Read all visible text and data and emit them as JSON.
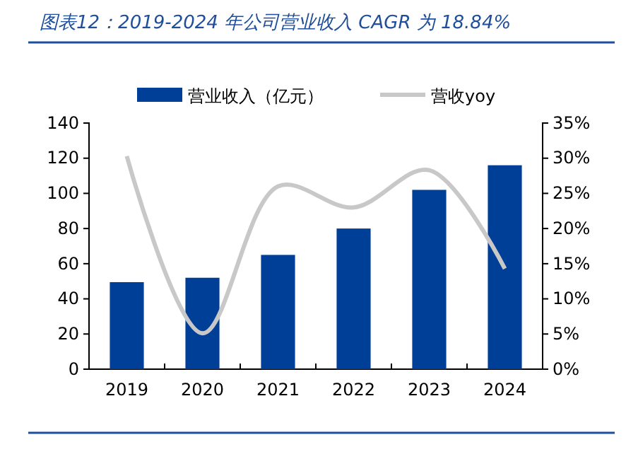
{
  "chart_data": {
    "type": "bar",
    "title": "图表12：2019-2024 年公司营业收入 CAGR 为 18.84%",
    "categories": [
      "2019",
      "2020",
      "2021",
      "2022",
      "2023",
      "2024"
    ],
    "series": [
      {
        "name": "营业收入（亿元）",
        "color": "#003f98",
        "values": [
          49.5,
          52,
          65,
          80,
          102,
          116
        ]
      },
      {
        "name": "营收yoy",
        "type": "line",
        "axis": "y2",
        "color": "#c8c8c8",
        "values": [
          30.3,
          5.1,
          26,
          23,
          28.3,
          14.3
        ]
      }
    ],
    "ylim": [
      0,
      140
    ],
    "yticks": [
      0,
      20,
      40,
      60,
      80,
      100,
      120,
      140
    ],
    "y2lim": [
      0,
      35
    ],
    "y2ticks": [
      {
        "value": 0,
        "label": "0%"
      },
      {
        "value": 5,
        "label": "5%"
      },
      {
        "value": 10,
        "label": "10%"
      },
      {
        "value": 15,
        "label": "15%"
      },
      {
        "value": 20,
        "label": "20%"
      },
      {
        "value": 25,
        "label": "25%"
      },
      {
        "value": 30,
        "label": "30%"
      },
      {
        "value": 35,
        "label": "35%"
      }
    ],
    "grid": false,
    "legend": "top",
    "marker": "none",
    "line_style": "solid"
  }
}
